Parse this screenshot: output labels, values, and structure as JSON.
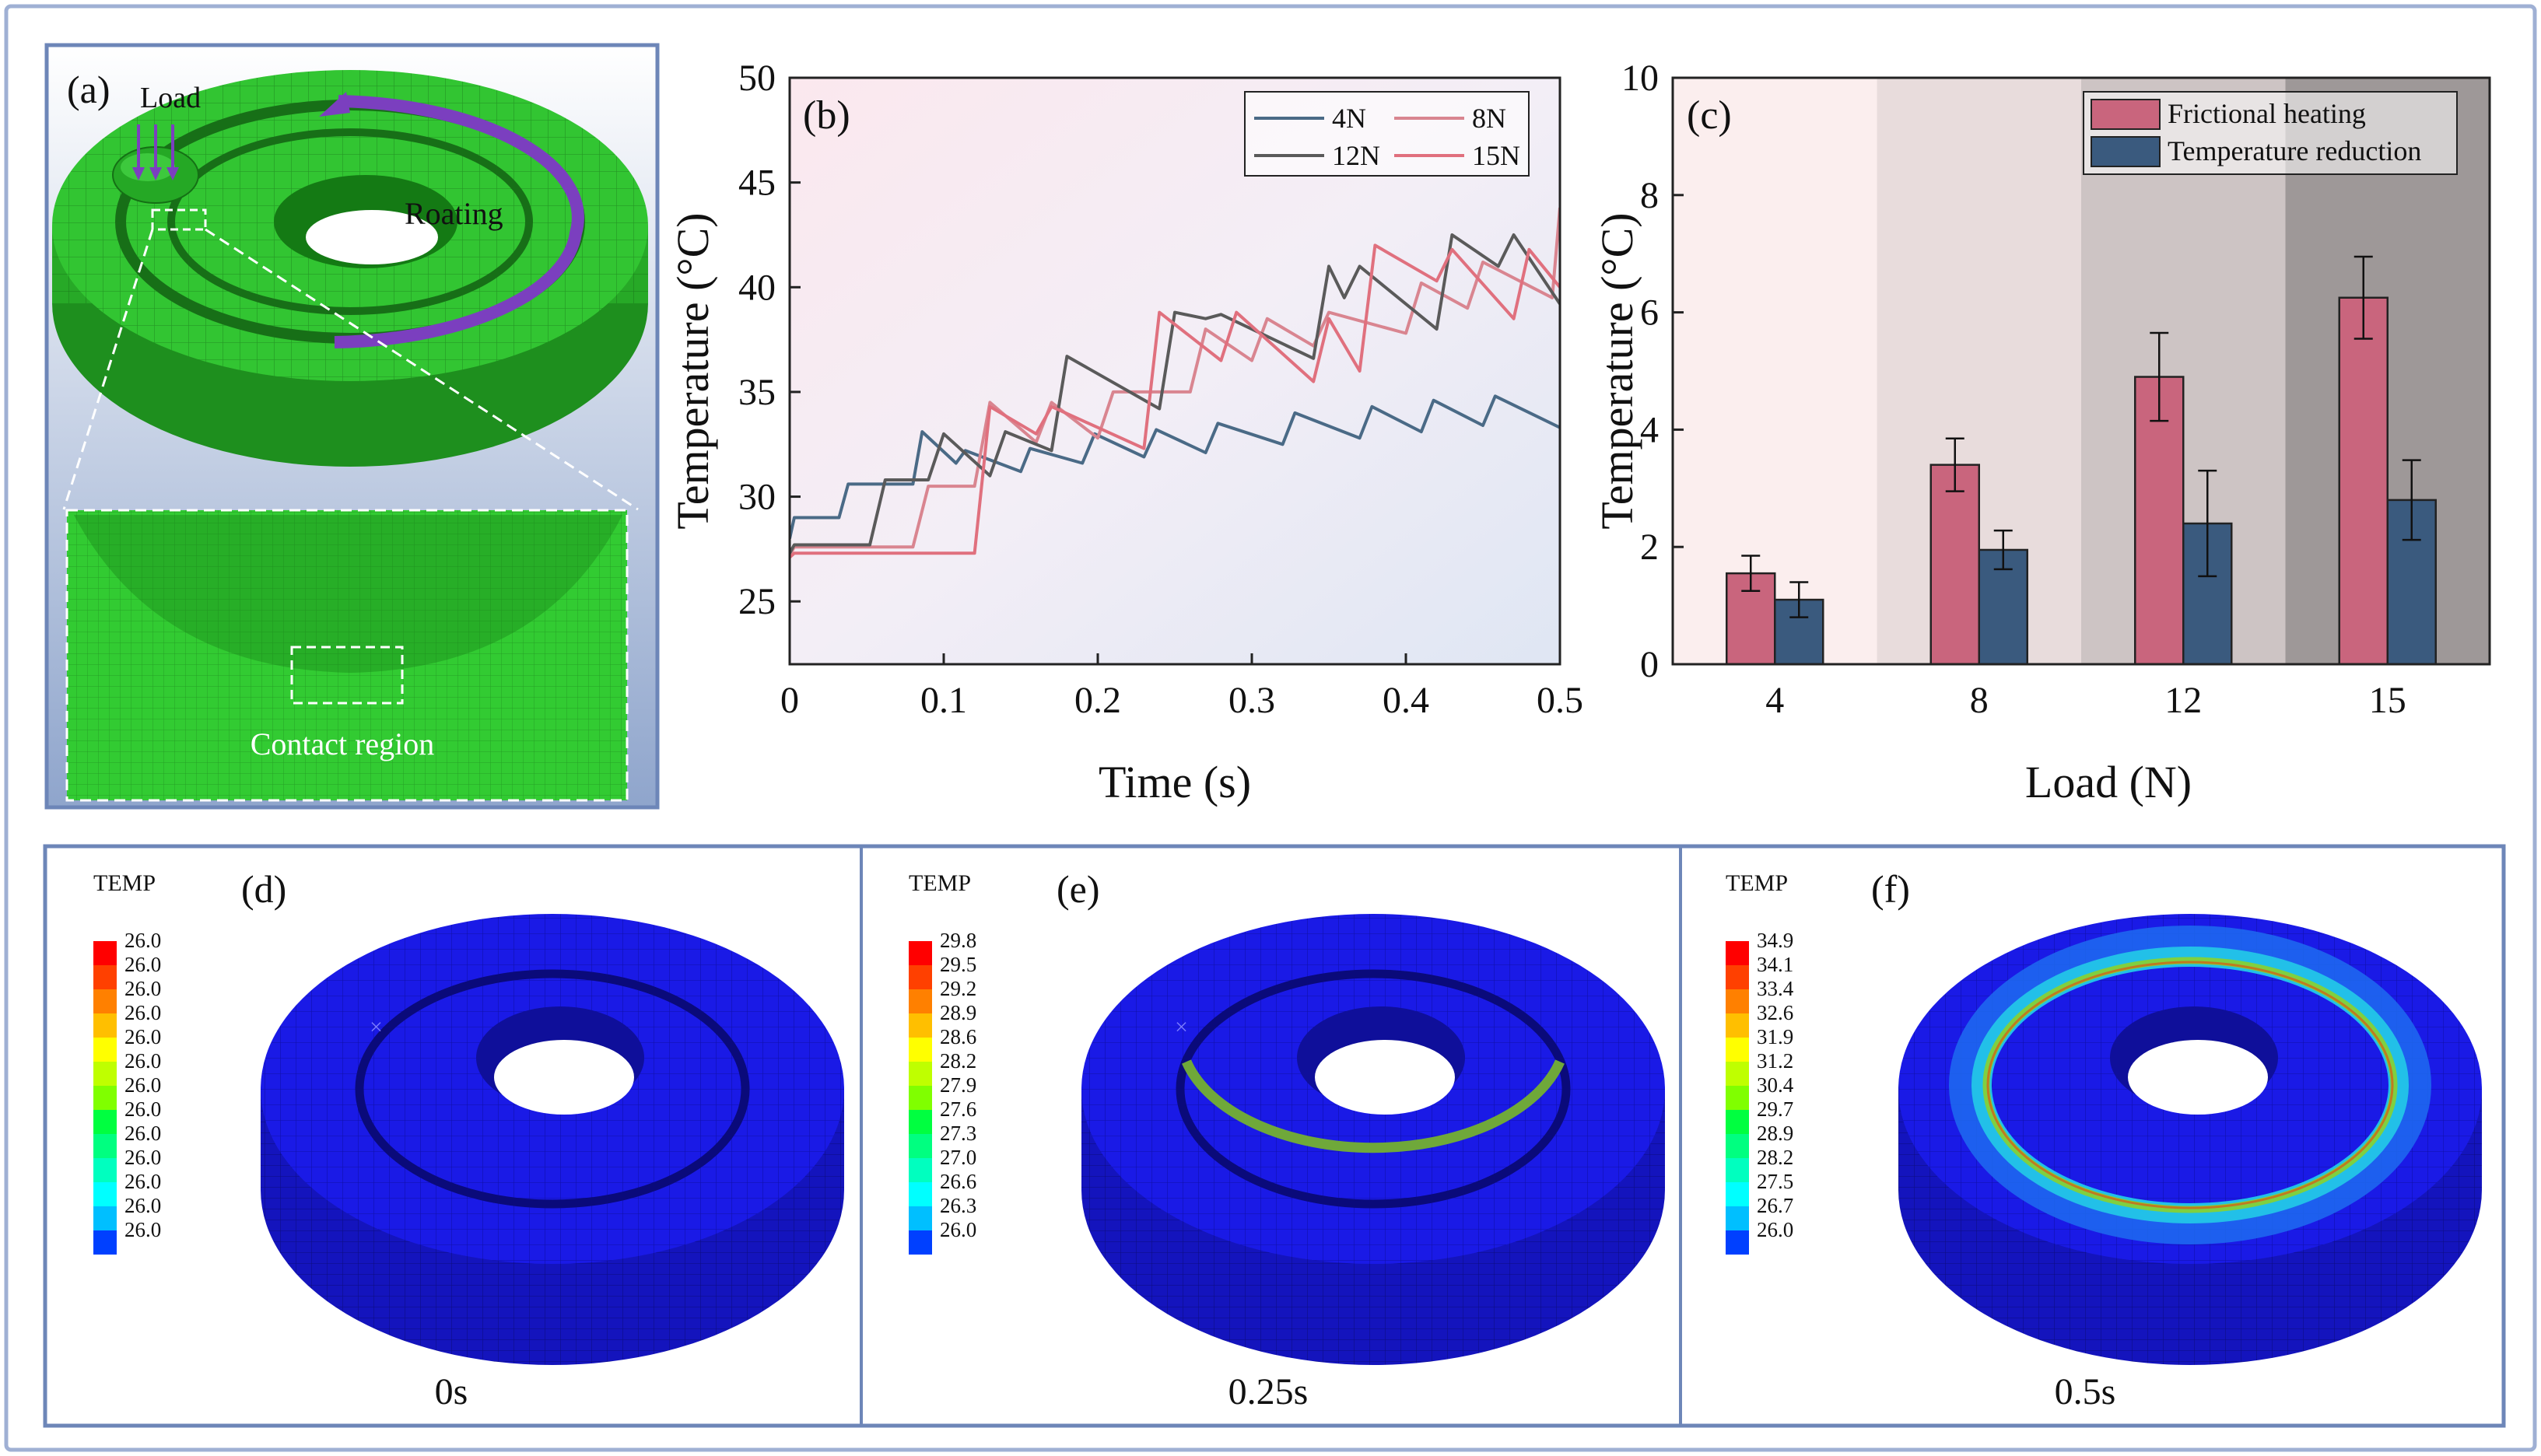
{
  "panel_a": {
    "label": "(a)",
    "load_text": "Load",
    "rotating_text": "Roating",
    "contact_text": "Contact region"
  },
  "chart_data": [
    {
      "panel": "(b)",
      "type": "line",
      "xlabel": "Time (s)",
      "ylabel": "Temperature (°C)",
      "xlim": [
        0,
        0.5
      ],
      "ylim": [
        22,
        50
      ],
      "xticks": [
        "0",
        "0.1",
        "0.2",
        "0.3",
        "0.4",
        "0.5"
      ],
      "yticks": [
        "25",
        "30",
        "35",
        "40",
        "45",
        "50"
      ],
      "legend": "top-right",
      "series": [
        {
          "name": "4N",
          "color": "#4a6a86",
          "x": [
            0,
            0.003,
            0.032,
            0.038,
            0.052,
            0.058,
            0.08,
            0.086,
            0.108,
            0.114,
            0.15,
            0.156,
            0.19,
            0.198,
            0.23,
            0.238,
            0.27,
            0.278,
            0.32,
            0.328,
            0.37,
            0.378,
            0.41,
            0.418,
            0.45,
            0.458,
            0.5
          ],
          "y": [
            28,
            29,
            29,
            30.6,
            30.6,
            30.6,
            30.6,
            33.1,
            31.6,
            32.2,
            31.2,
            32.3,
            31.6,
            33,
            31.9,
            33.2,
            32.1,
            33.5,
            32.5,
            34,
            32.8,
            34.3,
            33.1,
            34.6,
            33.4,
            34.8,
            33.3
          ]
        },
        {
          "name": "8N",
          "color": "#d98590",
          "x": [
            0,
            0.003,
            0.08,
            0.09,
            0.12,
            0.13,
            0.16,
            0.17,
            0.2,
            0.21,
            0.26,
            0.27,
            0.3,
            0.31,
            0.34,
            0.35,
            0.4,
            0.41,
            0.44,
            0.45,
            0.495,
            0.5
          ],
          "y": [
            27.2,
            27.6,
            27.6,
            30.5,
            30.5,
            34.5,
            32.6,
            34.5,
            32.8,
            35,
            35,
            38,
            36.5,
            38.5,
            37.2,
            38.8,
            37.8,
            40.2,
            39,
            41.2,
            39.5,
            43.8
          ]
        },
        {
          "name": "12N",
          "color": "#5a5a5a",
          "x": [
            0,
            0.003,
            0.052,
            0.062,
            0.09,
            0.1,
            0.13,
            0.14,
            0.17,
            0.18,
            0.24,
            0.25,
            0.27,
            0.28,
            0.34,
            0.35,
            0.36,
            0.37,
            0.42,
            0.43,
            0.46,
            0.47,
            0.5
          ],
          "y": [
            27.3,
            27.7,
            27.7,
            30.8,
            30.8,
            33,
            31,
            33.1,
            32.2,
            36.7,
            34.2,
            38.8,
            38.5,
            38.7,
            36.6,
            41,
            39.5,
            41,
            38,
            42.5,
            41,
            42.5,
            39.2
          ]
        },
        {
          "name": "15N",
          "color": "#e0707e",
          "x": [
            0,
            0.003,
            0.12,
            0.13,
            0.16,
            0.17,
            0.23,
            0.24,
            0.28,
            0.29,
            0.34,
            0.35,
            0.37,
            0.38,
            0.42,
            0.43,
            0.47,
            0.48,
            0.5
          ],
          "y": [
            27.1,
            27.3,
            27.3,
            34.3,
            33,
            34.3,
            32.3,
            38.8,
            36.5,
            38.8,
            35.5,
            38.5,
            36,
            42,
            40.3,
            41.8,
            38.5,
            41.8,
            40
          ]
        }
      ]
    },
    {
      "panel": "(c)",
      "type": "bar",
      "xlabel": "Load (N)",
      "ylabel": "Temperature (°C)",
      "ylim": [
        0,
        10
      ],
      "categories": [
        "4",
        "8",
        "12",
        "15"
      ],
      "yticks": [
        "0",
        "2",
        "4",
        "6",
        "8",
        "10"
      ],
      "legend": "top-right",
      "series": [
        {
          "name": "Frictional heating",
          "color": "#c9657d",
          "values": [
            1.55,
            3.4,
            4.9,
            6.25
          ],
          "errors": [
            0.3,
            0.45,
            0.75,
            0.7
          ]
        },
        {
          "name": "Temperature reduction",
          "color": "#3a5a7e",
          "values": [
            1.1,
            1.95,
            2.4,
            2.8
          ],
          "errors": [
            0.3,
            0.33,
            0.9,
            0.68
          ]
        }
      ]
    }
  ],
  "panels": [
    {
      "label": "(d)",
      "time": "0s",
      "legend_title": "TEMP",
      "values": [
        "26.0",
        "26.0",
        "26.0",
        "26.0",
        "26.0",
        "26.0",
        "26.0",
        "26.0",
        "26.0",
        "26.0",
        "26.0",
        "26.0",
        "26.0"
      ]
    },
    {
      "label": "(e)",
      "time": "0.25s",
      "legend_title": "TEMP",
      "values": [
        "29.8",
        "29.5",
        "29.2",
        "28.9",
        "28.6",
        "28.2",
        "27.9",
        "27.6",
        "27.3",
        "27.0",
        "26.6",
        "26.3",
        "26.0"
      ]
    },
    {
      "label": "(f)",
      "time": "0.5s",
      "legend_title": "TEMP",
      "values": [
        "34.9",
        "34.1",
        "33.4",
        "32.6",
        "31.9",
        "31.2",
        "30.4",
        "29.7",
        "28.9",
        "28.2",
        "27.5",
        "26.7",
        "26.0"
      ]
    }
  ],
  "colormap": [
    "#ff0000",
    "#ff4000",
    "#ff8000",
    "#ffbf00",
    "#ffff00",
    "#bfff00",
    "#80ff00",
    "#00ff40",
    "#00ff80",
    "#00ffbf",
    "#00ffff",
    "#00bfff",
    "#0040ff",
    "#0000ff"
  ]
}
